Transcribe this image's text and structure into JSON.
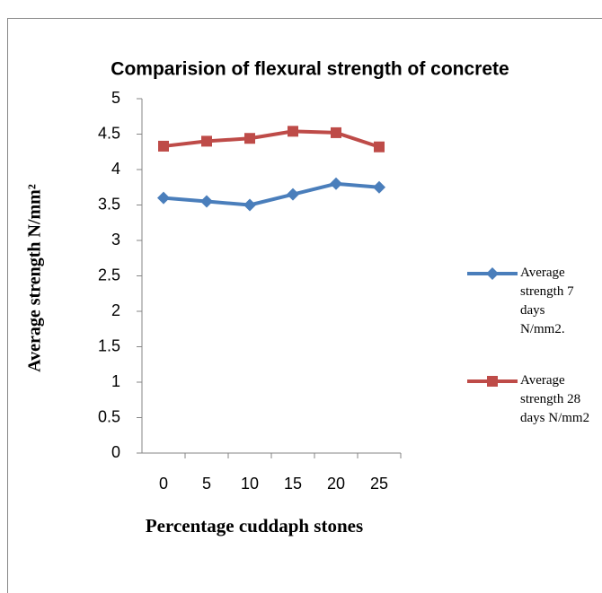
{
  "chart_data": {
    "type": "line",
    "title": "Comparision of flexural strength of concrete",
    "x_label": "Percentage cuddaph stones",
    "y_label": "Average strength N/mm²",
    "categories": [
      "0",
      "5",
      "10",
      "15",
      "20",
      "25"
    ],
    "series": [
      {
        "name": "Average strength 7 days N/mm2.",
        "color": "#4a7ebb",
        "marker": "diamond",
        "values": [
          3.6,
          3.55,
          3.5,
          3.65,
          3.8,
          3.75
        ]
      },
      {
        "name": "Average strength 28 days N/mm2",
        "color": "#be4b48",
        "marker": "square",
        "values": [
          4.33,
          4.4,
          4.44,
          4.54,
          4.52,
          4.32
        ]
      }
    ],
    "ylim": [
      0,
      5
    ],
    "yticks": [
      0,
      0.5,
      1,
      1.5,
      2,
      2.5,
      3,
      3.5,
      4,
      4.5,
      5
    ],
    "grid": false,
    "legend": "right"
  }
}
